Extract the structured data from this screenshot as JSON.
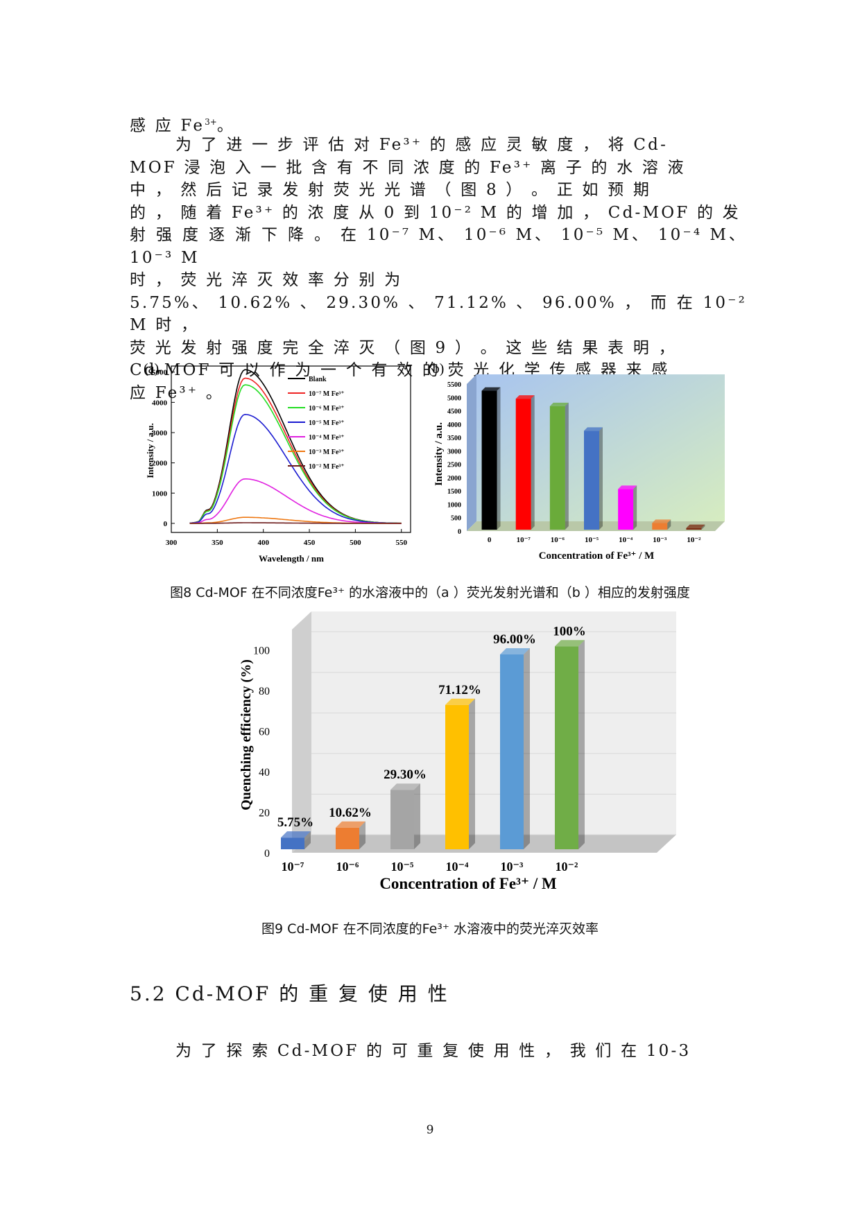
{
  "page": {
    "line1": "感 应 Fe",
    "line1_sup": "3+",
    "line1_end": "。",
    "p2_lines": [
      "为 了 进 一 步 评 估 对 Fe³⁺ 的 感 应 灵 敏 度 ， 将 Cd-",
      "MOF 浸 泡 入 一 批 含 有 不 同 浓 度 的 Fe³⁺ 离 子 的 水 溶 液",
      "中 ， 然 后 记 录 发 射 荧 光 光 谱 （ 图 8 ） 。 正 如 预 期",
      "的 ， 随 着 Fe³⁺ 的 浓 度 从 0 到 10⁻² M 的 增 加 ， Cd-MOF 的 发",
      "射 强 度 逐 渐 下 降 。 在 10⁻⁷ M、 10⁻⁶ M、 10⁻⁵ M、 10⁻⁴ M、 10⁻³ M",
      "时 ， 荧 光 淬 灭 效 率 分 别 为",
      "5.75%、 10.62% 、 29.30% 、 71.12% 、 96.00% ， 而 在 10⁻² M 时 ，",
      "荧 光 发 射 强 度 完 全 淬 灭 （ 图 9 ） 。 这 些 结 果 表 明 ，",
      "Cd-MOF 可 以 作 为 一 个 有 效 的 荧 光 化 学 传 感 器 来 感",
      "应 Fe³⁺ 。"
    ],
    "figure8_caption": "图8 Cd-MOF   在不同浓度Fe³⁺ 的水溶液中的（a ）荧光发射光谱和（b ）相应的发射强度",
    "figure9_caption": "图9 Cd-MOF   在不同浓度的Fe³⁺ 水溶液中的荧光淬灭效率",
    "section_heading": "5.2 Cd-MOF 的 重 复 使 用 性",
    "p3": "为 了 探 索 Cd-MOF 的 可 重 复 使 用 性 ， 我 们 在 10-3",
    "page_number": "9"
  },
  "chart_data": [
    {
      "type": "line",
      "panel_label": "(a)",
      "xlabel": "Wavelength / nm",
      "ylabel": "Intensity / a.u.",
      "xlim": [
        300,
        560
      ],
      "ylim": [
        -300,
        5200
      ],
      "xticks": [
        "300",
        "350",
        "400",
        "450",
        "500",
        "550"
      ],
      "yticks": [
        "0",
        "1000",
        "2000",
        "3000",
        "4000",
        "5000"
      ],
      "peak_x": 380,
      "x_start": 320,
      "x_end": 550,
      "legend_position": "top-right",
      "series": [
        {
          "name": "Blank",
          "color": "#000000",
          "peak": 5080
        },
        {
          "name": "10⁻⁷ M Fe³⁺",
          "color": "#ee2222",
          "peak": 4800
        },
        {
          "name": "10⁻⁶ M Fe³⁺",
          "color": "#22dd22",
          "peak": 4580
        },
        {
          "name": "10⁻⁵ M Fe³⁺",
          "color": "#1a1ad0",
          "peak": 3600
        },
        {
          "name": "10⁻⁴ M Fe³⁺",
          "color": "#e020e0",
          "peak": 1470
        },
        {
          "name": "10⁻³ M Fe³⁺",
          "color": "#ee7711",
          "peak": 200
        },
        {
          "name": "10⁻² M Fe³⁺",
          "color": "#6b1a1a",
          "peak": 20
        }
      ]
    },
    {
      "type": "bar",
      "panel_label": "(b)",
      "xlabel": "Concentration of Fe³⁺ / M",
      "ylabel": "Intensity / a.u.",
      "ylim": [
        0,
        5500
      ],
      "yticks": [
        "0",
        "500",
        "1000",
        "1500",
        "2000",
        "2500",
        "3000",
        "3500",
        "4000",
        "4500",
        "5000",
        "5500"
      ],
      "categories": [
        "0",
        "10⁻⁷",
        "10⁻⁶",
        "10⁻⁵",
        "10⁻⁴",
        "10⁻³",
        "10⁻²"
      ],
      "values": [
        5200,
        4900,
        4620,
        3700,
        1520,
        250,
        60
      ],
      "colors": [
        "#000000",
        "#ff0000",
        "#6aab3a",
        "#4472c4",
        "#ff00ff",
        "#ed7d31",
        "#7b2b12"
      ]
    },
    {
      "type": "bar",
      "xlabel": "Concentration of Fe³⁺ / M",
      "ylabel": "Quenching efficiency (%)",
      "ylim": [
        0,
        110
      ],
      "yticks": [
        "0",
        "20",
        "40",
        "60",
        "80",
        "100"
      ],
      "categories": [
        "10⁻⁷",
        "10⁻⁶",
        "10⁻⁵",
        "10⁻⁴",
        "10⁻³",
        "10⁻²"
      ],
      "values": [
        5.75,
        10.62,
        29.3,
        71.12,
        96.0,
        100
      ],
      "data_labels": [
        "5.75%",
        "10.62%",
        "29.30%",
        "71.12%",
        "96.00%",
        "100%"
      ],
      "colors": [
        "#4472c4",
        "#ed7d31",
        "#a5a5a5",
        "#ffc000",
        "#5b9bd5",
        "#70ad47"
      ]
    }
  ]
}
